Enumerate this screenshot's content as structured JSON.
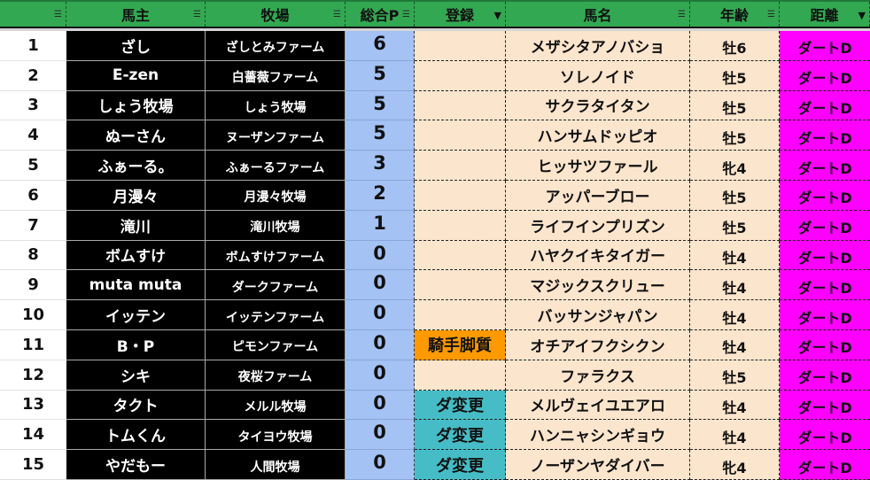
{
  "header": {
    "columns": [
      {
        "label": "",
        "filter": "filter-icon"
      },
      {
        "label": "馬主",
        "filter": "filter-icon"
      },
      {
        "label": "牧場",
        "filter": "filter-icon"
      },
      {
        "label": "総合P",
        "filter": "filter-icon"
      },
      {
        "label": "登録",
        "filter": "filter-active-icon"
      },
      {
        "label": "馬名",
        "filter": "filter-icon"
      },
      {
        "label": "年齢",
        "filter": "filter-icon"
      },
      {
        "label": "距離",
        "filter": "filter-active-icon"
      }
    ]
  },
  "colors": {
    "header": "#33a852",
    "owner_bg": "#000000",
    "points_bg": "#a4c2f4",
    "horse_bg": "#fce5cd",
    "distance_bg": "#ff00ff",
    "reg_orange": "#ff9900",
    "reg_teal": "#46bdc6"
  },
  "rows": [
    {
      "no": "1",
      "owner": "ざし",
      "farm": "ざしとみファーム",
      "points": "6",
      "reg": "",
      "horse": "メザシタアノバショ",
      "age": "牡6",
      "dist": "ダートD"
    },
    {
      "no": "2",
      "owner": "E-zen",
      "farm": "白薔薇ファーム",
      "points": "5",
      "reg": "",
      "horse": "ソレノイド",
      "age": "牡5",
      "dist": "ダートD"
    },
    {
      "no": "3",
      "owner": "しょう牧場",
      "farm": "しょう牧場",
      "points": "5",
      "reg": "",
      "horse": "サクラタイタン",
      "age": "牡5",
      "dist": "ダートD"
    },
    {
      "no": "4",
      "owner": "ぬーさん",
      "farm": "ヌーザンファーム",
      "points": "5",
      "reg": "",
      "horse": "ハンサムドッピオ",
      "age": "牡5",
      "dist": "ダートD"
    },
    {
      "no": "5",
      "owner": "ふぁーる。",
      "farm": "ふぁーるファーム",
      "points": "3",
      "reg": "",
      "horse": "ヒッサツファール",
      "age": "牝4",
      "dist": "ダートD"
    },
    {
      "no": "6",
      "owner": "月漫々",
      "farm": "月漫々牧場",
      "points": "2",
      "reg": "",
      "horse": "アッパーブロー",
      "age": "牡5",
      "dist": "ダートD"
    },
    {
      "no": "7",
      "owner": "滝川",
      "farm": "滝川牧場",
      "points": "1",
      "reg": "",
      "horse": "ライフインプリズン",
      "age": "牡5",
      "dist": "ダートD"
    },
    {
      "no": "8",
      "owner": "ボムすけ",
      "farm": "ボムすけファーム",
      "points": "0",
      "reg": "",
      "horse": "ハヤクイキタイガー",
      "age": "牡4",
      "dist": "ダートD"
    },
    {
      "no": "9",
      "owner": "muta muta",
      "farm": "ダークファーム",
      "points": "0",
      "reg": "",
      "horse": "マジックスクリュー",
      "age": "牡4",
      "dist": "ダートD"
    },
    {
      "no": "10",
      "owner": "イッテン",
      "farm": "イッテンファーム",
      "points": "0",
      "reg": "",
      "horse": "バッサンジャパン",
      "age": "牡4",
      "dist": "ダートD"
    },
    {
      "no": "11",
      "owner": "B・P",
      "farm": "ピモンファーム",
      "points": "0",
      "reg": "騎手脚質",
      "regColor": "orange",
      "horse": "オチアイフクシクン",
      "age": "牡4",
      "dist": "ダートD"
    },
    {
      "no": "12",
      "owner": "シキ",
      "farm": "夜桜ファーム",
      "points": "0",
      "reg": "",
      "horse": "ファラクス",
      "age": "牡5",
      "dist": "ダートD"
    },
    {
      "no": "13",
      "owner": "タクト",
      "farm": "メルル牧場",
      "points": "0",
      "reg": "ダ変更",
      "regColor": "teal",
      "horse": "メルヴェイユエアロ",
      "age": "牡4",
      "dist": "ダートD"
    },
    {
      "no": "14",
      "owner": "トムくん",
      "farm": "タイヨウ牧場",
      "points": "0",
      "reg": "ダ変更",
      "regColor": "teal",
      "horse": "ハンニャシンギョウ",
      "age": "牡4",
      "dist": "ダートD"
    },
    {
      "no": "15",
      "owner": "やだもー",
      "farm": "人間牧場",
      "points": "0",
      "reg": "ダ変更",
      "regColor": "teal",
      "horse": "ノーザンヤダイバー",
      "age": "牝4",
      "dist": "ダートD"
    }
  ]
}
